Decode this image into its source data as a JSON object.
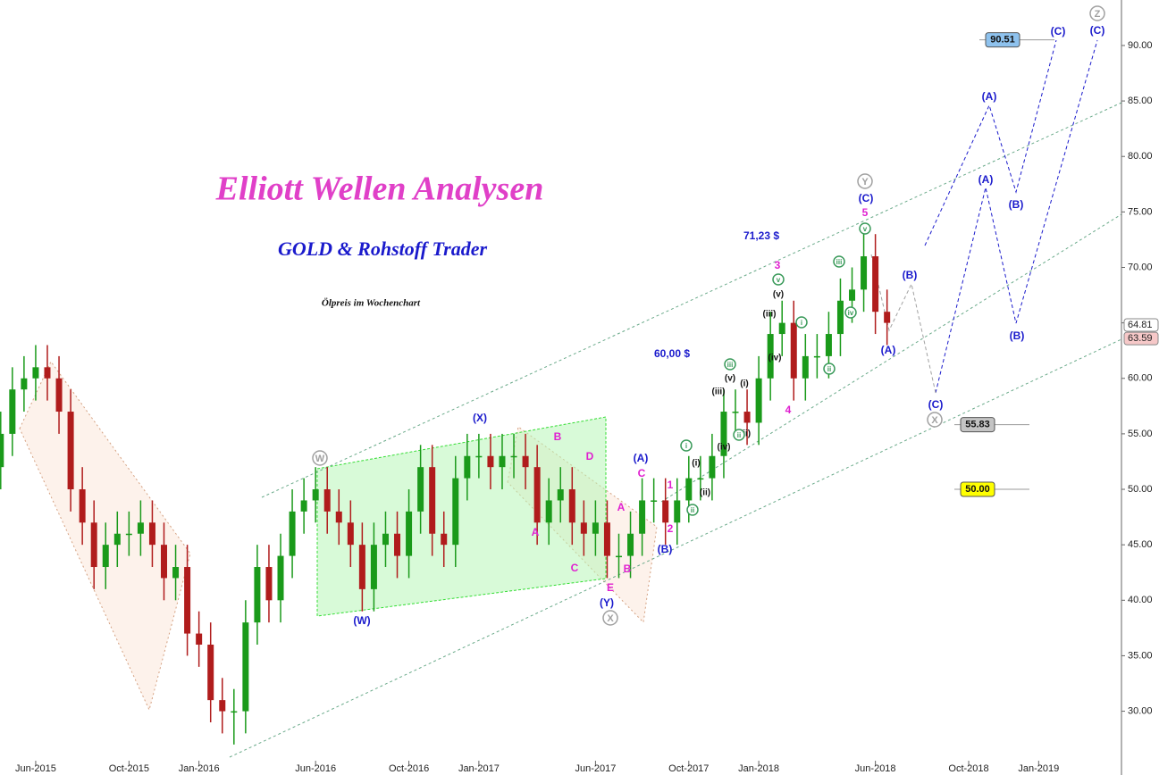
{
  "chart_data": {
    "type": "candlestick",
    "title": "Elliott Wellen Analysen",
    "subtitle": "GOLD & Rohstoff Trader",
    "note": "Ölpreis im Wochenchart",
    "price_notes": [
      "71,23 $",
      "60,00 $"
    ],
    "x": [
      3.5,
      4,
      4.5,
      5,
      5.5,
      6,
      6.5,
      7,
      7.5,
      8,
      8.5,
      9,
      9.5,
      10,
      10.5,
      11,
      11.5,
      12,
      12.5,
      13,
      13.5,
      14,
      14.5,
      15,
      15.5,
      16,
      16.5,
      17,
      17.5,
      18,
      18.5,
      19,
      19.5,
      20,
      20.5,
      21,
      21.5,
      22,
      22.5,
      23,
      23.5,
      24,
      24.5,
      25,
      25.5,
      26,
      26.5,
      27,
      27.5,
      28,
      28.5,
      29,
      29.5,
      30,
      30.5,
      31,
      31.5,
      32,
      32.5,
      33,
      33.5,
      34,
      34.5,
      35,
      35.5,
      36,
      36.5,
      37,
      37.5,
      38,
      38.5,
      39,
      39.5,
      40,
      40.5,
      41,
      41.5
    ],
    "open": [
      52,
      55,
      59,
      60,
      61,
      60,
      57,
      50,
      47,
      43,
      45,
      46,
      46,
      47,
      45,
      42,
      43,
      37,
      36,
      31,
      30,
      30,
      38,
      43,
      40,
      44,
      48,
      49,
      50,
      48,
      47,
      45,
      41,
      45,
      46,
      44,
      48,
      52,
      46,
      45,
      51,
      53,
      53,
      52,
      53,
      53,
      52,
      47,
      49,
      50,
      47,
      46,
      47,
      44,
      44,
      46,
      49,
      49,
      47,
      49,
      51,
      51,
      53,
      57,
      57,
      56,
      60,
      64,
      65,
      60,
      62,
      62,
      64,
      67,
      68,
      71,
      66
    ],
    "high": [
      57,
      61,
      62,
      63,
      63,
      62,
      59,
      52,
      49,
      47,
      48,
      48,
      49,
      49,
      47,
      45,
      45,
      39,
      38,
      33,
      32,
      40,
      45,
      45,
      46,
      50,
      51,
      52,
      52,
      50,
      49,
      47,
      47,
      48,
      48,
      50,
      54,
      54,
      48,
      53,
      55,
      55,
      55,
      55,
      55,
      55,
      54,
      51,
      52,
      52,
      49,
      49,
      49,
      46,
      48,
      51,
      51,
      51,
      51,
      53,
      53,
      55,
      59,
      59,
      59,
      62,
      66,
      67,
      67,
      64,
      64,
      66,
      69,
      70,
      73,
      73,
      68
    ],
    "low": [
      50,
      53,
      57,
      58,
      58,
      55,
      48,
      45,
      41,
      41,
      43,
      44,
      44,
      43,
      40,
      40,
      35,
      34,
      29,
      28,
      27,
      28,
      36,
      38,
      38,
      42,
      46,
      47,
      46,
      45,
      43,
      39,
      39,
      43,
      42,
      42,
      46,
      44,
      43,
      43,
      49,
      51,
      50,
      50,
      51,
      50,
      45,
      45,
      47,
      45,
      44,
      44,
      42,
      42,
      42,
      44,
      47,
      45,
      45,
      47,
      49,
      49,
      51,
      55,
      54,
      54,
      58,
      62,
      58,
      58,
      60,
      60,
      62,
      65,
      66,
      64,
      63
    ],
    "close": [
      55,
      59,
      60,
      61,
      60,
      57,
      50,
      47,
      43,
      45,
      46,
      46,
      47,
      45,
      42,
      43,
      37,
      36,
      31,
      30,
      30,
      38,
      43,
      40,
      44,
      48,
      49,
      50,
      48,
      47,
      45,
      41,
      45,
      46,
      44,
      48,
      52,
      46,
      45,
      51,
      53,
      53,
      52,
      53,
      53,
      52,
      47,
      49,
      50,
      47,
      46,
      47,
      44,
      44,
      46,
      49,
      49,
      47,
      49,
      51,
      51,
      53,
      57,
      57,
      56,
      60,
      64,
      65,
      60,
      62,
      62,
      64,
      67,
      68,
      71,
      66,
      65
    ],
    "up_color": "#1a9a1a",
    "down_color": "#b01c1c",
    "xlim": [
      3.47,
      51.55
    ],
    "ylim": [
      25.7,
      94.1
    ],
    "xticks": [
      {
        "value": 5,
        "label": "Jun-2015"
      },
      {
        "value": 9,
        "label": "Oct-2015"
      },
      {
        "value": 12,
        "label": "Jan-2016"
      },
      {
        "value": 17,
        "label": "Jun-2016"
      },
      {
        "value": 21,
        "label": "Oct-2016"
      },
      {
        "value": 24,
        "label": "Jan-2017"
      },
      {
        "value": 29,
        "label": "Jun-2017"
      },
      {
        "value": 33,
        "label": "Oct-2017"
      },
      {
        "value": 36,
        "label": "Jan-2018"
      },
      {
        "value": 41,
        "label": "Jun-2018"
      },
      {
        "value": 45,
        "label": "Oct-2018"
      },
      {
        "value": 48,
        "label": "Jan-2019"
      }
    ],
    "yticks": [
      {
        "value": 30,
        "label": "30.00"
      },
      {
        "value": 35,
        "label": "35.00"
      },
      {
        "value": 40,
        "label": "40.00"
      },
      {
        "value": 45,
        "label": "45.00"
      },
      {
        "value": 50,
        "label": "50.00"
      },
      {
        "value": 55,
        "label": "55.00"
      },
      {
        "value": 60,
        "label": "60.00"
      },
      {
        "value": 65,
        "label": "65.00"
      },
      {
        "value": 70,
        "label": "70.00"
      },
      {
        "value": 75,
        "label": "75.00"
      },
      {
        "value": 80,
        "label": "80.00"
      },
      {
        "value": 85,
        "label": "85.00"
      },
      {
        "value": 90,
        "label": "90.00"
      }
    ],
    "price_tags": [
      {
        "value": 64.81,
        "color": "#ffffff"
      },
      {
        "value": 63.59,
        "color": "#f6c8c8"
      }
    ],
    "levels": [
      {
        "value": 90.51,
        "color": "#8ec2ee"
      },
      {
        "value": 55.83,
        "color": "#c4c4c4"
      },
      {
        "value": 50,
        "label": "50.00",
        "color": "#ffff00"
      }
    ],
    "wave_labels": [
      {
        "color": "#a0a0a0",
        "circled": true,
        "labels": [
          "W",
          "X",
          "Y",
          "X",
          "Z"
        ]
      },
      {
        "color": "#1a1acc",
        "circled": false,
        "labels": [
          "(W)",
          "(X)",
          "(Y)",
          "(A)",
          "(B)",
          "(C)",
          "(A)",
          "(B)",
          "(C)",
          "(A)",
          "(B)",
          "(C)",
          "(A)",
          "(B)",
          "(C)"
        ]
      },
      {
        "color": "#e020d0",
        "circled": false,
        "labels": [
          "A",
          "B",
          "C",
          "D",
          "E",
          "A",
          "B",
          "C",
          "1",
          "2",
          "3",
          "4",
          "5"
        ]
      },
      {
        "color": "#111111",
        "circled": false,
        "labels": [
          "(i)",
          "(ii)",
          "(iii)",
          "(iv)",
          "(v)",
          "(i)",
          "(ii)",
          "(iii)",
          "(iv)",
          "(v)"
        ]
      },
      {
        "color": "#3a9a5a",
        "circled": true,
        "labels": [
          "i",
          "ii",
          "iii",
          "ii",
          "v",
          "i",
          "ii",
          "iii",
          "iv",
          "v"
        ]
      }
    ]
  }
}
